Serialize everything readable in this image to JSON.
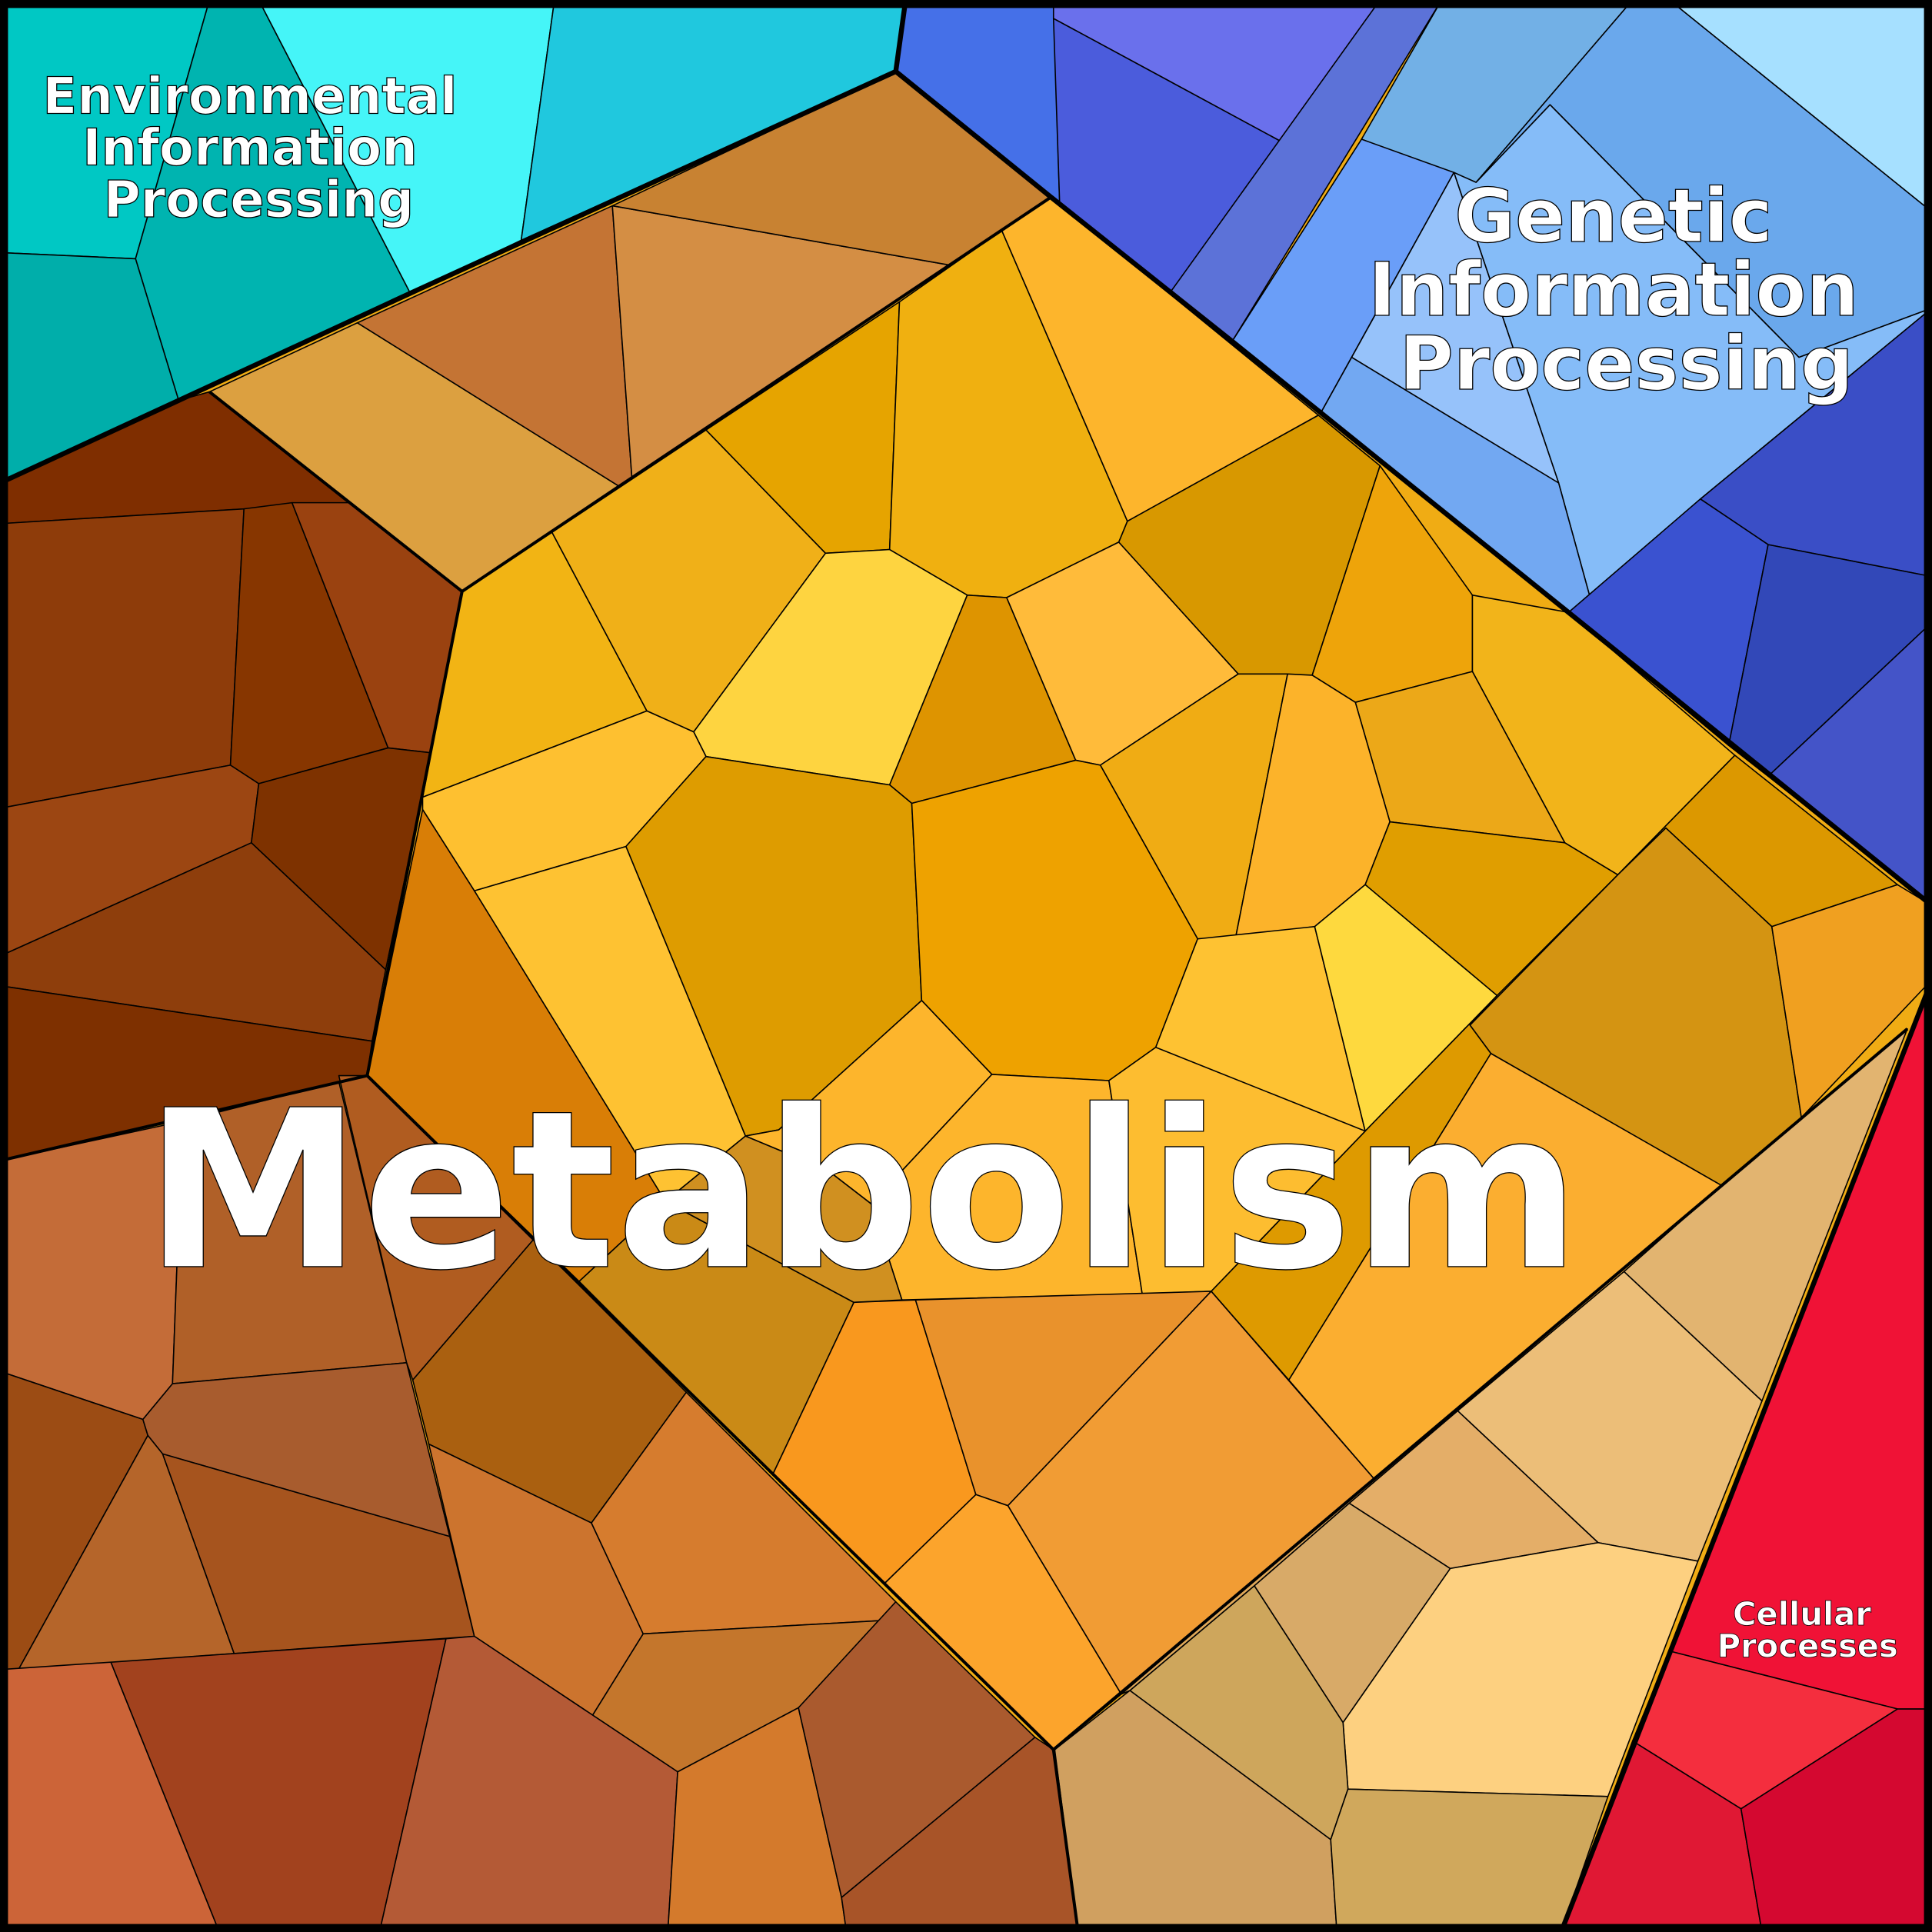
{
  "labels": {
    "environmental": [
      "Environmental",
      "Information",
      "Processing"
    ],
    "genetic": [
      "Genetic",
      "Information",
      "Processing"
    ],
    "metabolism": "Metabolism",
    "cellular": [
      "Cellular",
      "Processes"
    ]
  },
  "colors": {
    "environmental": "#00c8c4",
    "genetic": "#4a5ed8",
    "metabolism_core": "#f0ac14",
    "metabolism_brown": "#9a4210",
    "metabolism_tan": "#e2b470",
    "cellular": "#f01236"
  }
}
